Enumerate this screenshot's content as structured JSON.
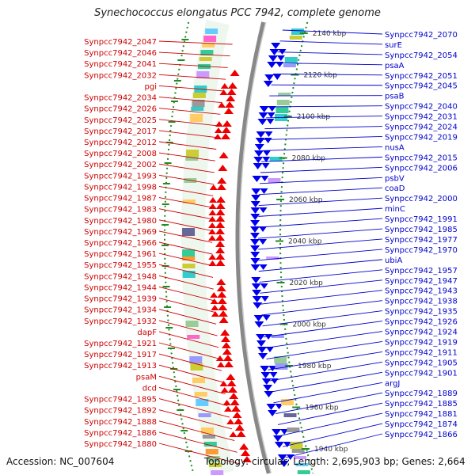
{
  "title": "Synechococcus elongatus PCC 7942, complete genome",
  "accession": "Accession: NC_007604",
  "topology": "Topology: circular; Length: 2,695,903 bp; Genes: 2,664",
  "colors": {
    "left_label": "#cc0000",
    "right_label": "#0000cc",
    "forward_arrow": "#ee0000",
    "reverse_arrow": "#0000ee",
    "backbone": "#888888",
    "scale": "#228b22"
  },
  "scale_ticks": [
    "2140 kbp",
    "2120 kbp",
    "2100 kbp",
    "2080 kbp",
    "2060 kbp",
    "2040 kbp",
    "2020 kbp",
    "2000 kbp",
    "1980 kbp",
    "1960 kbp",
    "1940 kbp"
  ],
  "left_labels": [
    "Synpcc7942_2047",
    "Synpcc7942_2046",
    "Synpcc7942_2041",
    "Synpcc7942_2032",
    "pgi",
    "Synpcc7942_2034",
    "Synpcc7942_2026",
    "Synpcc7942_2025",
    "Synpcc7942_2017",
    "Synpcc7942_2012",
    "Synpcc7942_2008",
    "Synpcc7942_2002",
    "Synpcc7942_1993",
    "Synpcc7942_1998",
    "Synpcc7942_1987",
    "Synpcc7942_1983",
    "Synpcc7942_1980",
    "Synpcc7942_1969",
    "Synpcc7942_1966",
    "Synpcc7942_1961",
    "Synpcc7942_1955",
    "Synpcc7942_1948",
    "Synpcc7942_1944",
    "Synpcc7942_1939",
    "Synpcc7942_1934",
    "Synpcc7942_1932",
    "dapF",
    "Synpcc7942_1921",
    "Synpcc7942_1917",
    "Synpcc7942_1913",
    "psaM",
    "dcd",
    "Synpcc7942_1895",
    "Synpcc7942_1892",
    "Synpcc7942_1888",
    "Synpcc7942_1886",
    "Synpcc7942_1880"
  ],
  "right_labels": [
    "Synpcc7942_2070",
    "surE",
    "Synpcc7942_2054",
    "psaA",
    "Synpcc7942_2051",
    "Synpcc7942_2045",
    "psaB",
    "Synpcc7942_2040",
    "Synpcc7942_2031",
    "Synpcc7942_2024",
    "Synpcc7942_2019",
    "nusA",
    "Synpcc7942_2015",
    "Synpcc7942_2006",
    "psbV",
    "coaD",
    "Synpcc7942_2000",
    "minC",
    "Synpcc7942_1991",
    "Synpcc7942_1985",
    "Synpcc7942_1977",
    "Synpcc7942_1970",
    "ubiA",
    "Synpcc7942_1957",
    "Synpcc7942_1947",
    "Synpcc7942_1943",
    "Synpcc7942_1938",
    "Synpcc7942_1935",
    "Synpcc7942_1926",
    "Synpcc7942_1924",
    "Synpcc7942_1919",
    "Synpcc7942_1911",
    "Synpcc7942_1905",
    "Synpcc7942_1901",
    "argJ",
    "Synpcc7942_1889",
    "Synpcc7942_1885",
    "Synpcc7942_1881",
    "Synpcc7942_1874",
    "Synpcc7942_1866"
  ]
}
